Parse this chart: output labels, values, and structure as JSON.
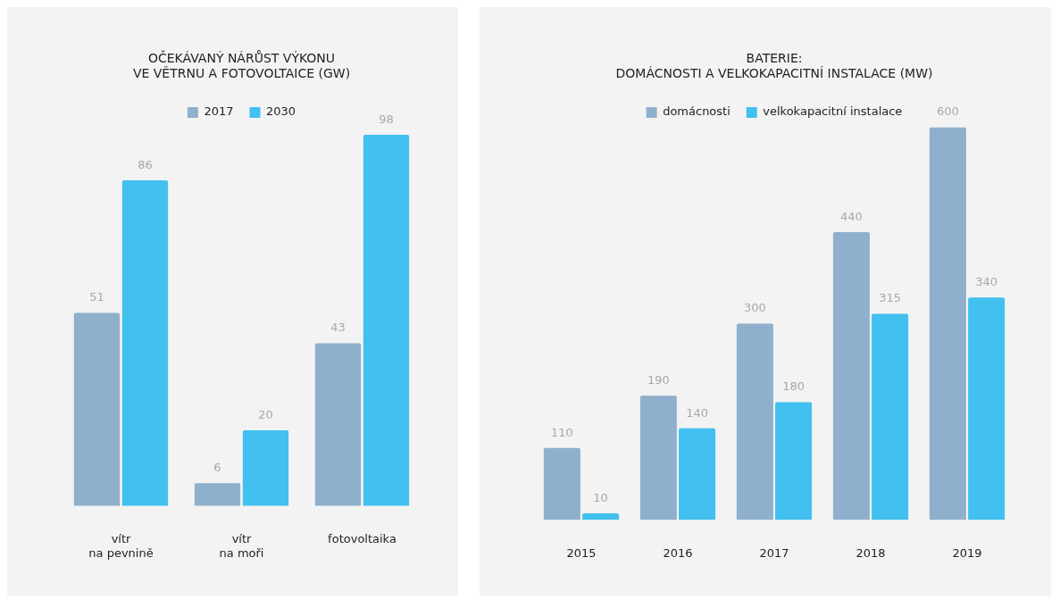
{
  "chart_data": [
    {
      "type": "bar",
      "title": "OČEKÁVANÝ NÁRŮST VÝKONU\nVE VĚTRNU A FOTOVOLTAICE (GW)",
      "categories": [
        "vítr\nna pevnině",
        "vítr\nna moři",
        "fotovoltaika"
      ],
      "legend": "top",
      "data_labels": true,
      "grid": false,
      "series": [
        {
          "name": "2017",
          "color": "#8fb0cc",
          "values": [
            51,
            6,
            43
          ]
        },
        {
          "name": "2030",
          "color": "#42c0ef",
          "values": [
            86,
            20,
            98
          ]
        }
      ]
    },
    {
      "type": "bar",
      "title": "BATERIE:\nDOMÁCNOSTI A VELKOKAPACITNÍ INSTALACE (MW)",
      "categories": [
        "2015",
        "2016",
        "2017",
        "2018",
        "2019"
      ],
      "legend": "top",
      "data_labels": true,
      "grid": false,
      "series": [
        {
          "name": "domácnosti",
          "color": "#8fb0cc",
          "values": [
            110,
            190,
            300,
            440,
            600
          ]
        },
        {
          "name": "velkokapacitní instalace",
          "color": "#42c0ef",
          "values": [
            10,
            140,
            180,
            315,
            340
          ]
        }
      ]
    }
  ]
}
